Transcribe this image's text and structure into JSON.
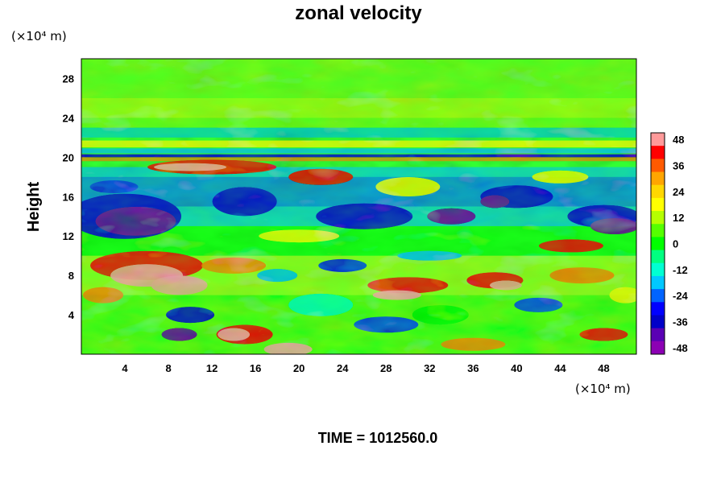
{
  "chart_data": {
    "type": "heatmap",
    "title": "zonal velocity",
    "ylabel": "Height",
    "x_unit_label": "(×10⁴ m)",
    "y_unit_label": "(×10⁴ m)",
    "xlim": [
      0,
      51
    ],
    "ylim": [
      0,
      30
    ],
    "x_ticks": [
      4,
      8,
      12,
      16,
      20,
      24,
      28,
      32,
      36,
      40,
      44,
      48
    ],
    "y_ticks": [
      4,
      8,
      12,
      16,
      20,
      24,
      28
    ],
    "colorbar": {
      "range": [
        -51,
        51
      ],
      "ticks": [
        48,
        36,
        24,
        12,
        0,
        -12,
        -24,
        -36,
        -48
      ],
      "colors_top_to_bottom": [
        "#ff9a9a",
        "#ff0000",
        "#ff5a00",
        "#ffa500",
        "#ffd700",
        "#ffff00",
        "#b5ff00",
        "#55ff00",
        "#00ff00",
        "#00ff80",
        "#00ffd2",
        "#00c8ff",
        "#0064ff",
        "#0000ff",
        "#0000c8",
        "#5a00b4",
        "#8c00b4"
      ]
    },
    "time_label": "TIME = 1012560.0"
  }
}
